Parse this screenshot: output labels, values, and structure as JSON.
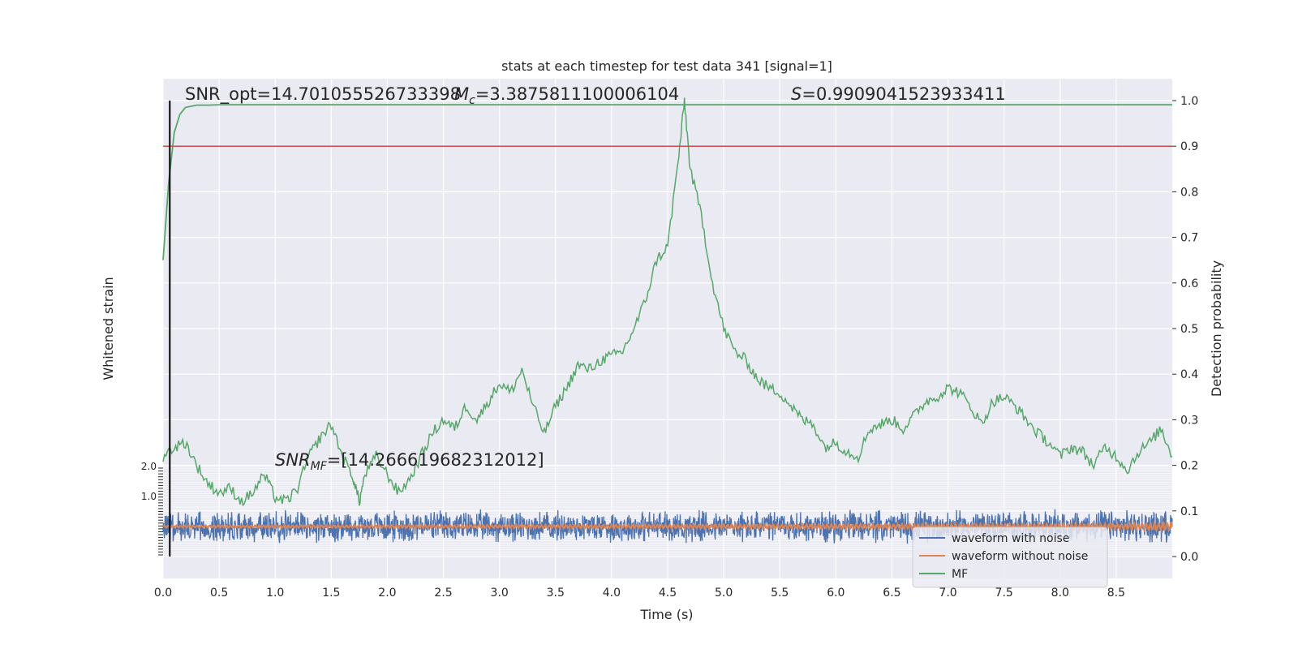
{
  "chart_data": {
    "type": "line",
    "title": "stats at each timestep for test data 341 [signal=1]",
    "xlabel": "Time (s)",
    "ylabel_left": "Whitened strain",
    "ylabel_right": "Detection probability",
    "xlim": [
      0,
      9.0
    ],
    "x_ticks": [
      "0.0",
      "0.5",
      "1.0",
      "1.5",
      "2.0",
      "2.5",
      "3.0",
      "3.5",
      "4.0",
      "4.5",
      "5.0",
      "5.5",
      "6.0",
      "6.5",
      "7.0",
      "7.5",
      "8.0",
      "8.5"
    ],
    "ylim_right": [
      -0.05,
      1.05
    ],
    "y_right_ticks": [
      "0.0",
      "0.1",
      "0.2",
      "0.3",
      "0.4",
      "0.5",
      "0.6",
      "0.7",
      "0.8",
      "0.9",
      "1.0"
    ],
    "ylim_left": [
      -1.0,
      2.0
    ],
    "y_left_ticks": [
      "1.0",
      "2.0"
    ],
    "grid": true,
    "legend_position": "lower-right",
    "legend": [
      "waveform with noise",
      "waveform without noise",
      "MF"
    ],
    "annotations": {
      "snr_opt": "SNR_opt=14.701055526733398",
      "mc": "=3.3875811100006104",
      "s": "=0.9909041523933411",
      "snr_mf": "=[14.266619682312012]"
    },
    "threshold": 0.9,
    "marker_time": 0.06,
    "series": [
      {
        "name": "waveform with noise",
        "color": "#4c72b0",
        "axis": "left",
        "x_range": [
          0,
          9.0
        ],
        "envelope": [
          -0.45,
          0.45
        ]
      },
      {
        "name": "waveform without noise",
        "color": "#dd8452",
        "axis": "left",
        "x_range": [
          0,
          9.0
        ],
        "envelope": [
          -0.1,
          0.1
        ]
      },
      {
        "name": "MF",
        "color": "#55a868",
        "axis": "right",
        "x": [
          0.0,
          0.05,
          0.1,
          0.15,
          0.2,
          0.3,
          0.4,
          0.5,
          1.0,
          2.0,
          3.0,
          4.0,
          5.0,
          6.0,
          7.0,
          8.0,
          9.0
        ],
        "values": [
          0.65,
          0.82,
          0.93,
          0.97,
          0.985,
          0.99,
          0.99,
          0.991,
          0.991,
          0.991,
          0.991,
          0.991,
          0.991,
          0.991,
          0.991,
          0.991,
          0.991
        ]
      },
      {
        "name": "",
        "color": "#55a868",
        "axis": "right",
        "x": [
          0.0,
          0.1,
          0.2,
          0.3,
          0.4,
          0.5,
          0.6,
          0.7,
          0.8,
          0.9,
          1.0,
          1.1,
          1.2,
          1.3,
          1.4,
          1.5,
          1.6,
          1.7,
          1.75,
          1.8,
          1.9,
          2.0,
          2.1,
          2.2,
          2.3,
          2.4,
          2.5,
          2.6,
          2.7,
          2.8,
          2.9,
          3.0,
          3.1,
          3.2,
          3.3,
          3.4,
          3.5,
          3.6,
          3.7,
          3.8,
          3.9,
          4.0,
          4.1,
          4.2,
          4.3,
          4.4,
          4.5,
          4.6,
          4.65,
          4.7,
          4.8,
          4.9,
          5.0,
          5.1,
          5.2,
          5.3,
          5.4,
          5.5,
          5.6,
          5.7,
          5.8,
          5.9,
          6.0,
          6.1,
          6.2,
          6.3,
          6.4,
          6.5,
          6.6,
          6.7,
          6.8,
          6.9,
          7.0,
          7.1,
          7.2,
          7.3,
          7.4,
          7.5,
          7.6,
          7.7,
          7.8,
          7.9,
          8.0,
          8.1,
          8.2,
          8.3,
          8.4,
          8.5,
          8.6,
          8.7,
          8.8,
          8.9,
          9.0
        ],
        "values": [
          0.22,
          0.24,
          0.25,
          0.2,
          0.16,
          0.14,
          0.15,
          0.12,
          0.14,
          0.18,
          0.13,
          0.12,
          0.15,
          0.22,
          0.26,
          0.29,
          0.22,
          0.17,
          0.12,
          0.18,
          0.22,
          0.18,
          0.14,
          0.17,
          0.22,
          0.27,
          0.3,
          0.28,
          0.33,
          0.3,
          0.34,
          0.38,
          0.36,
          0.41,
          0.33,
          0.27,
          0.33,
          0.37,
          0.42,
          0.41,
          0.43,
          0.44,
          0.45,
          0.5,
          0.56,
          0.65,
          0.68,
          0.88,
          1.0,
          0.85,
          0.75,
          0.6,
          0.5,
          0.45,
          0.43,
          0.39,
          0.37,
          0.36,
          0.33,
          0.3,
          0.29,
          0.24,
          0.25,
          0.23,
          0.22,
          0.28,
          0.29,
          0.3,
          0.28,
          0.31,
          0.34,
          0.35,
          0.37,
          0.36,
          0.33,
          0.29,
          0.34,
          0.35,
          0.33,
          0.3,
          0.27,
          0.25,
          0.22,
          0.24,
          0.23,
          0.2,
          0.24,
          0.22,
          0.19,
          0.23,
          0.25,
          0.28,
          0.22
        ]
      }
    ]
  }
}
